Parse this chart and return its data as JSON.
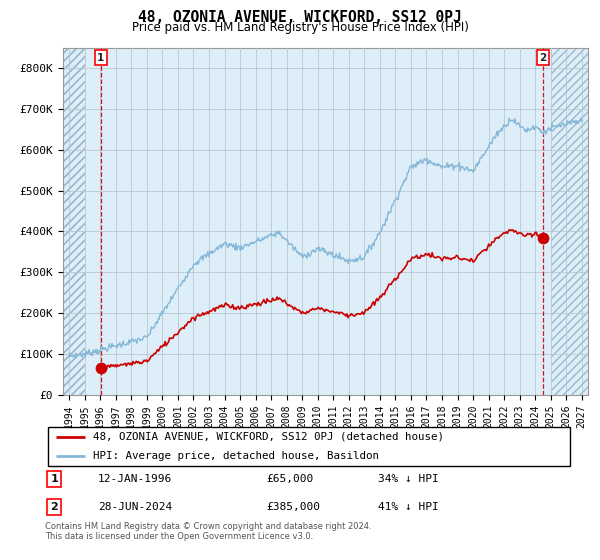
{
  "title": "48, OZONIA AVENUE, WICKFORD, SS12 0PJ",
  "subtitle": "Price paid vs. HM Land Registry's House Price Index (HPI)",
  "hpi_color": "#85b8d8",
  "price_color": "#cc0000",
  "background_color": "#ddeef8",
  "hatch_color": "#b8cfe0",
  "grid_color": "#c0c8d0",
  "ylim": [
    0,
    850000
  ],
  "yticks": [
    0,
    100000,
    200000,
    300000,
    400000,
    500000,
    600000,
    700000,
    800000
  ],
  "ytick_labels": [
    "£0",
    "£100K",
    "£200K",
    "£300K",
    "£400K",
    "£500K",
    "£600K",
    "£700K",
    "£800K"
  ],
  "xlim_start": 1993.6,
  "xlim_end": 2027.4,
  "xticks": [
    1994,
    1995,
    1996,
    1997,
    1998,
    1999,
    2000,
    2001,
    2002,
    2003,
    2004,
    2005,
    2006,
    2007,
    2008,
    2009,
    2010,
    2011,
    2012,
    2013,
    2014,
    2015,
    2016,
    2017,
    2018,
    2019,
    2020,
    2021,
    2022,
    2023,
    2024,
    2025,
    2026,
    2027
  ],
  "sale1_year": 1996.04,
  "sale1_price": 65000,
  "sale1_label": "1",
  "sale2_year": 2024.5,
  "sale2_price": 385000,
  "sale2_label": "2",
  "legend_line1": "48, OZONIA AVENUE, WICKFORD, SS12 0PJ (detached house)",
  "legend_line2": "HPI: Average price, detached house, Basildon",
  "annotation1_date": "12-JAN-1996",
  "annotation1_price": "£65,000",
  "annotation1_hpi": "34% ↓ HPI",
  "annotation2_date": "28-JUN-2024",
  "annotation2_price": "£385,000",
  "annotation2_hpi": "41% ↓ HPI",
  "footer": "Contains HM Land Registry data © Crown copyright and database right 2024.\nThis data is licensed under the Open Government Licence v3.0."
}
